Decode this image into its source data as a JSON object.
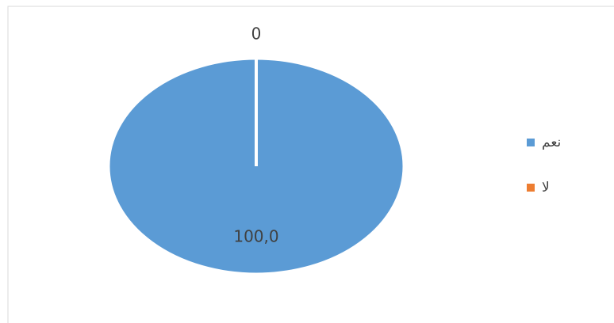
{
  "chart_data": {
    "type": "pie",
    "categories": [
      "نعم",
      "لا"
    ],
    "values": [
      100,
      0
    ],
    "value_labels": [
      "100,0",
      "0"
    ],
    "colors": [
      "#5b9bd5",
      "#ed7d31"
    ],
    "legend": "right"
  }
}
